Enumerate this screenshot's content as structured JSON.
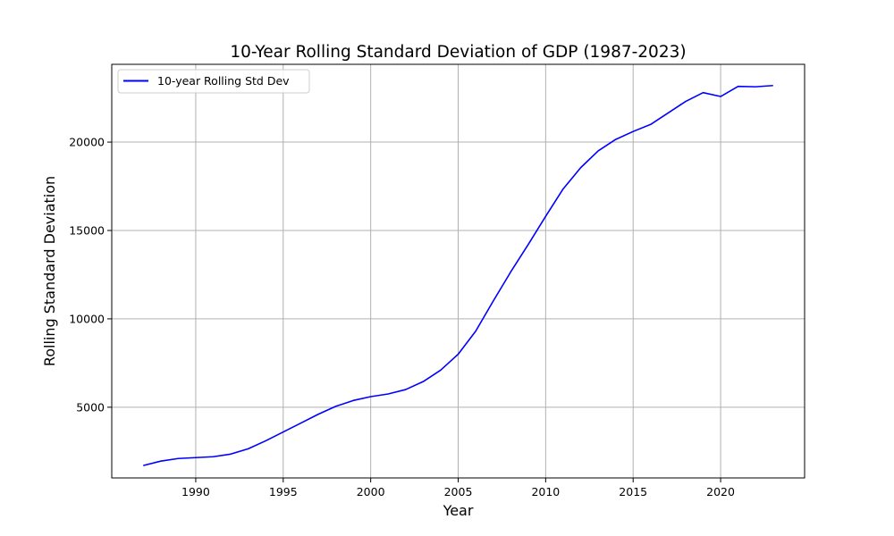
{
  "chart_data": {
    "type": "line",
    "title": "10-Year Rolling Standard Deviation of GDP (1987-2023)",
    "xlabel": "Year",
    "ylabel": "Rolling Standard Deviation",
    "xlim": [
      1985.2,
      2024.8
    ],
    "ylim": [
      1000,
      24400
    ],
    "xticks": [
      1990,
      1995,
      2000,
      2005,
      2010,
      2015,
      2020
    ],
    "yticks": [
      5000,
      10000,
      15000,
      20000
    ],
    "grid": true,
    "legend_position": "top-left",
    "series": [
      {
        "name": "10-year Rolling Std Dev",
        "color": "#0000ff",
        "x": [
          1987,
          1988,
          1989,
          1990,
          1991,
          1992,
          1993,
          1994,
          1995,
          1996,
          1997,
          1998,
          1999,
          2000,
          2001,
          2002,
          2003,
          2004,
          2005,
          2006,
          2007,
          2008,
          2009,
          2010,
          2011,
          2012,
          2013,
          2014,
          2015,
          2016,
          2017,
          2018,
          2019,
          2020,
          2021,
          2022,
          2023
        ],
        "y": [
          1700,
          1950,
          2100,
          2150,
          2200,
          2350,
          2650,
          3100,
          3600,
          4100,
          4600,
          5050,
          5380,
          5600,
          5750,
          6000,
          6450,
          7100,
          8000,
          9300,
          11000,
          12650,
          14200,
          15800,
          17350,
          18550,
          19500,
          20150,
          20600,
          21000,
          21650,
          22300,
          22800,
          22580,
          23150,
          23130,
          23200
        ]
      }
    ]
  }
}
